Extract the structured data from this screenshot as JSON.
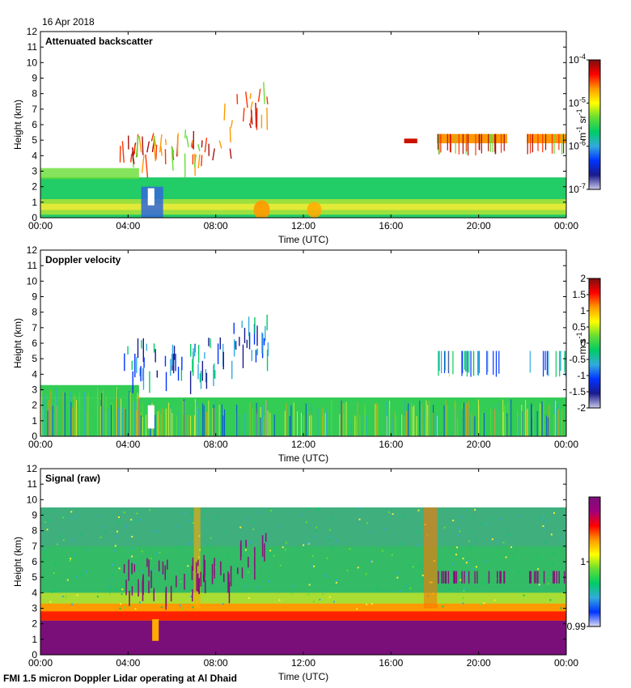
{
  "date": "16 Apr 2018",
  "footer": "FMI 1.5 micron Doppler Lidar operating at Al Dhaid",
  "chart_data": [
    {
      "type": "heatmap",
      "title": "Attenuated backscatter",
      "xlabel": "Time (UTC)",
      "ylabel": "Height (km)",
      "x_ticks": [
        "00:00",
        "04:00",
        "08:00",
        "12:00",
        "16:00",
        "20:00",
        "00:00"
      ],
      "xlim_hours": [
        0,
        24
      ],
      "y_ticks": [
        "0",
        "1",
        "2",
        "3",
        "4",
        "5",
        "6",
        "7",
        "8",
        "9",
        "10",
        "11",
        "12"
      ],
      "ylim_km": [
        0,
        12
      ],
      "colorbar": {
        "scale": "log",
        "range": [
          1e-07,
          0.0001
        ],
        "ticks": [
          {
            "base": "10",
            "exp": "-4"
          },
          {
            "base": "10",
            "exp": "-5"
          },
          {
            "base": "10",
            "exp": "-6"
          },
          {
            "base": "10",
            "exp": "-7"
          }
        ],
        "unit_parts": [
          {
            "t": "m"
          },
          {
            "t": "-1",
            "sup": true
          },
          {
            "t": " sr"
          },
          {
            "t": "-1",
            "sup": true
          }
        ]
      },
      "features": [
        {
          "desc": "boundary layer",
          "start_h": 0,
          "end_h": 24,
          "top_km": 2.6,
          "value": "1e-6"
        },
        {
          "desc": "elevated cloud layer",
          "start_h": 4,
          "end_h": 10.5,
          "bottom_km": 3,
          "top_km": 7.5
        },
        {
          "desc": "cloud layer",
          "start_h": 18,
          "end_h": 24,
          "bottom_km": 4.3,
          "top_km": 5.6
        }
      ]
    },
    {
      "type": "heatmap",
      "title": "Doppler velocity",
      "xlabel": "Time (UTC)",
      "ylabel": "Height (km)",
      "x_ticks": [
        "00:00",
        "04:00",
        "08:00",
        "12:00",
        "16:00",
        "20:00",
        "00:00"
      ],
      "xlim_hours": [
        0,
        24
      ],
      "y_ticks": [
        "0",
        "1",
        "2",
        "3",
        "4",
        "5",
        "6",
        "7",
        "8",
        "9",
        "10",
        "11",
        "12"
      ],
      "ylim_km": [
        0,
        12
      ],
      "colorbar": {
        "scale": "linear",
        "range": [
          -2,
          2
        ],
        "ticks": [
          "2",
          "1.5",
          "1",
          "0.5",
          "0",
          "-0.5",
          "-1",
          "-1.5",
          "-2"
        ],
        "unit_parts": [
          {
            "t": "m s"
          },
          {
            "t": "-1",
            "sup": true
          }
        ]
      }
    },
    {
      "type": "heatmap",
      "title": "Signal (raw)",
      "xlabel": "Time (UTC)",
      "ylabel": "Height (km)",
      "x_ticks": [
        "00:00",
        "04:00",
        "08:00",
        "12:00",
        "16:00",
        "20:00",
        "00:00"
      ],
      "xlim_hours": [
        0,
        24
      ],
      "y_ticks": [
        "0",
        "1",
        "2",
        "3",
        "4",
        "5",
        "6",
        "7",
        "8",
        "9",
        "10",
        "11",
        "12"
      ],
      "ylim_km": [
        0,
        12
      ],
      "data_top_km": 9.5,
      "colorbar": {
        "scale": "linear",
        "range": [
          0.99,
          1.01
        ],
        "ticks": [
          "1",
          "0.99"
        ],
        "unit_parts": []
      }
    }
  ]
}
